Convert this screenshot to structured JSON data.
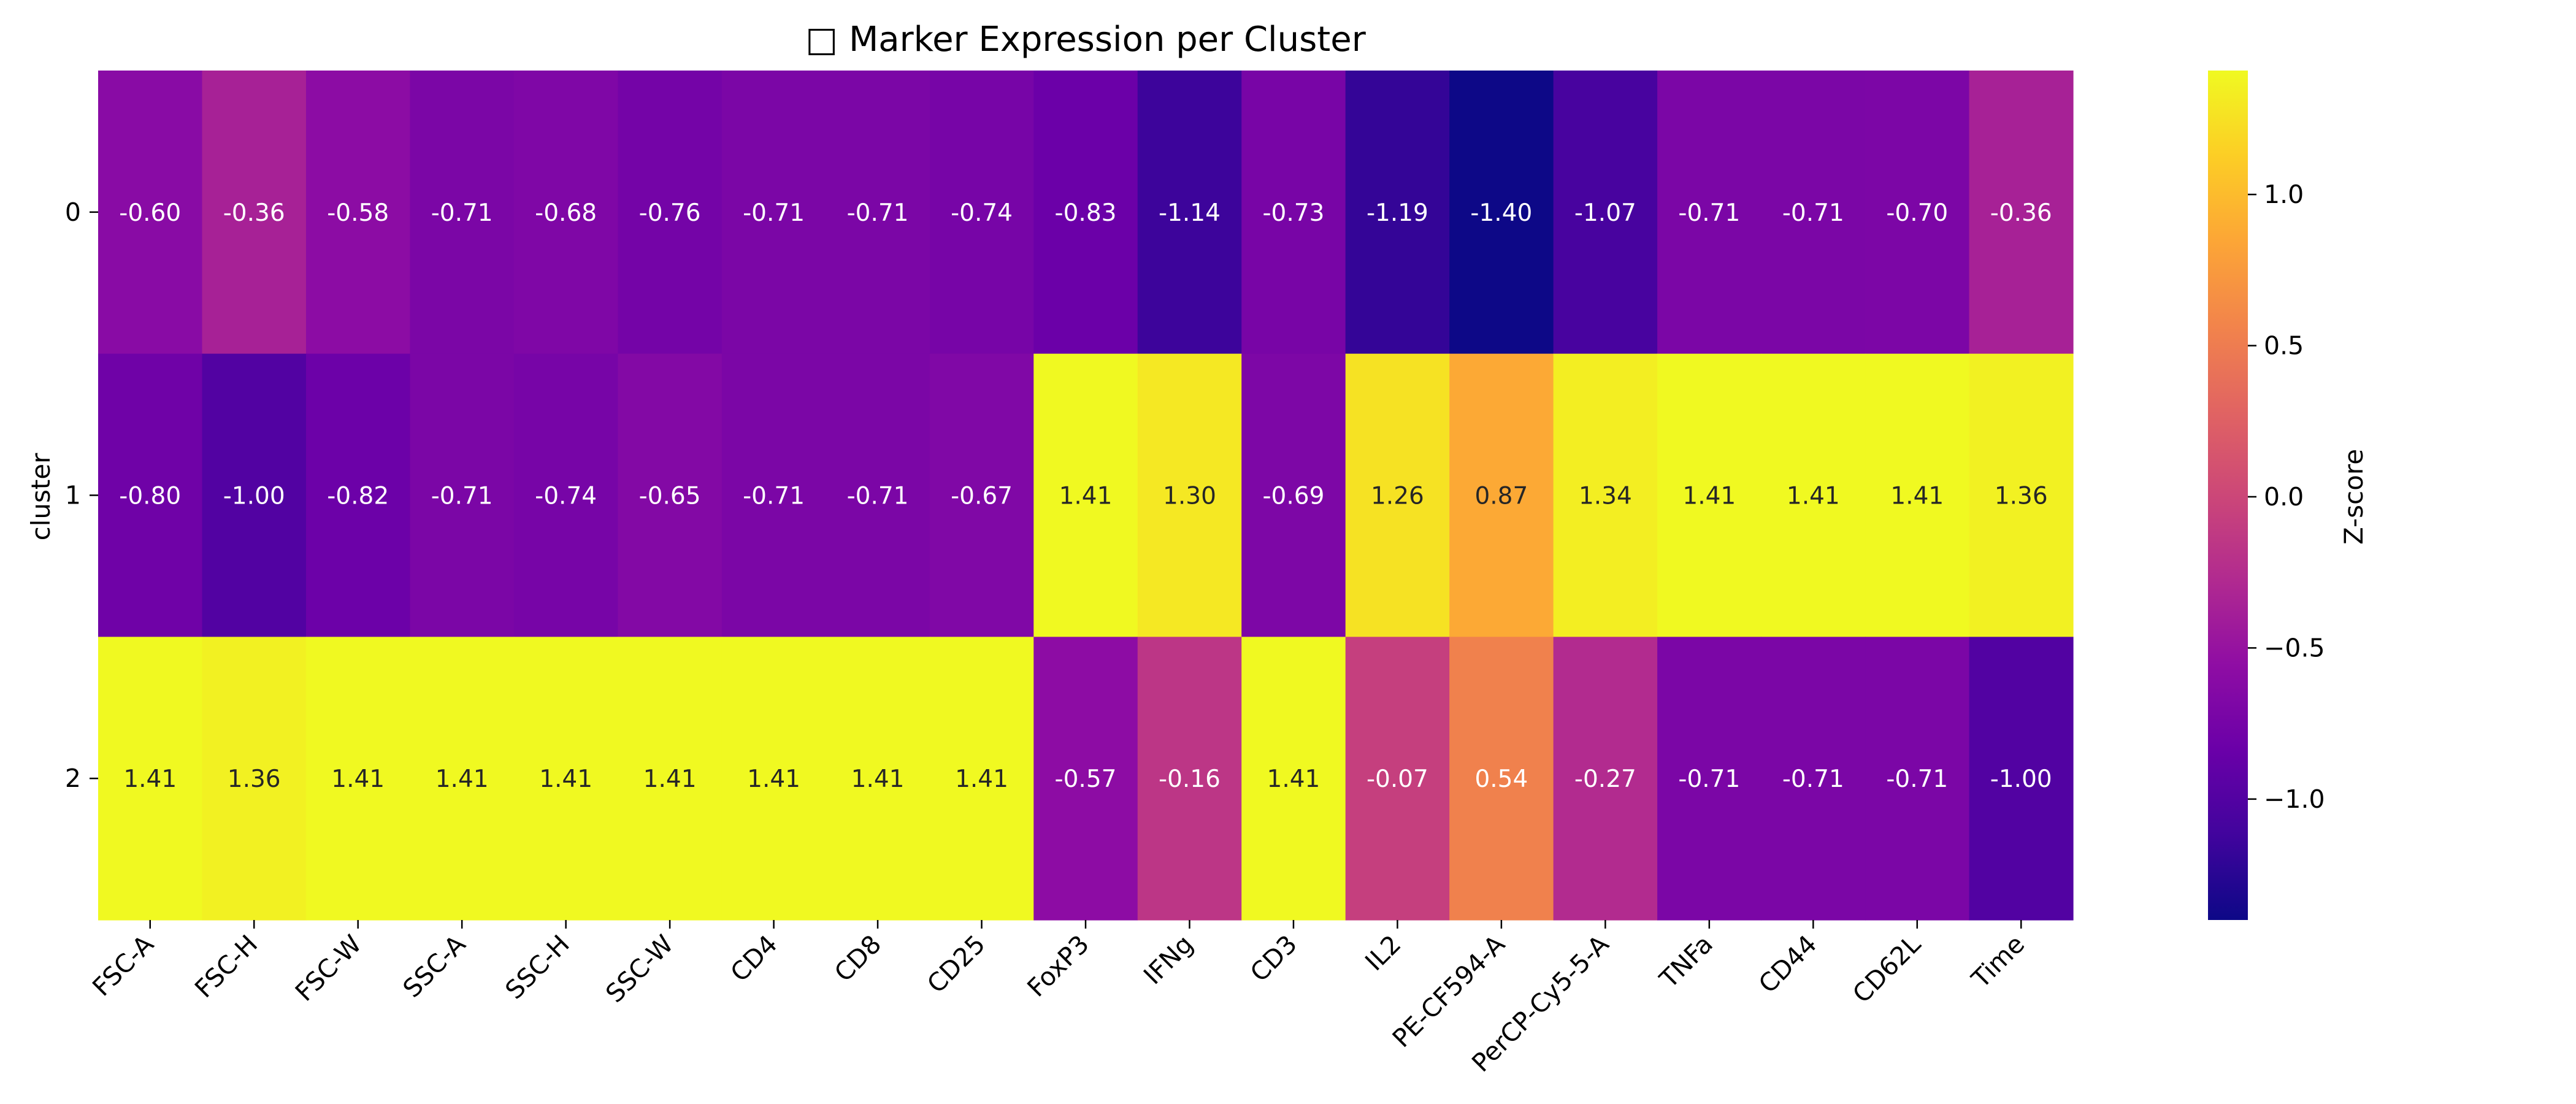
{
  "chart_data": {
    "type": "heatmap",
    "title": "□ Marker Expression per Cluster",
    "xlabel": "",
    "ylabel": "cluster",
    "colorbar_label": "Z-score",
    "colormap": "plasma",
    "vmin": -1.4,
    "vmax": 1.41,
    "x_categories": [
      "FSC-A",
      "FSC-H",
      "FSC-W",
      "SSC-A",
      "SSC-H",
      "SSC-W",
      "CD4",
      "CD8",
      "CD25",
      "FoxP3",
      "IFNg",
      "CD3",
      "IL2",
      "PE-CF594-A",
      "PerCP-Cy5-5-A",
      "TNFa",
      "CD44",
      "CD62L",
      "Time"
    ],
    "y_categories": [
      "0",
      "1",
      "2"
    ],
    "values": [
      [
        -0.6,
        -0.36,
        -0.58,
        -0.71,
        -0.68,
        -0.76,
        -0.71,
        -0.71,
        -0.74,
        -0.83,
        -1.14,
        -0.73,
        -1.19,
        -1.4,
        -1.07,
        -0.71,
        -0.71,
        -0.7,
        -0.36
      ],
      [
        -0.8,
        -1.0,
        -0.82,
        -0.71,
        -0.74,
        -0.65,
        -0.71,
        -0.71,
        -0.67,
        1.41,
        1.3,
        -0.69,
        1.26,
        0.87,
        1.34,
        1.41,
        1.41,
        1.41,
        1.36
      ],
      [
        1.41,
        1.36,
        1.41,
        1.41,
        1.41,
        1.41,
        1.41,
        1.41,
        1.41,
        -0.57,
        -0.16,
        1.41,
        -0.07,
        0.54,
        -0.27,
        -0.71,
        -0.71,
        -0.71,
        -1.0
      ]
    ],
    "colorbar_ticks": [
      -1.0,
      -0.5,
      0.0,
      0.5,
      1.0
    ],
    "colorbar_tick_labels": [
      "−1.0",
      "−0.5",
      "0.0",
      "0.5",
      "1.0"
    ],
    "annotations": "values shown in each cell with 2 decimals",
    "legend": "colorbar-right",
    "grid": false
  }
}
